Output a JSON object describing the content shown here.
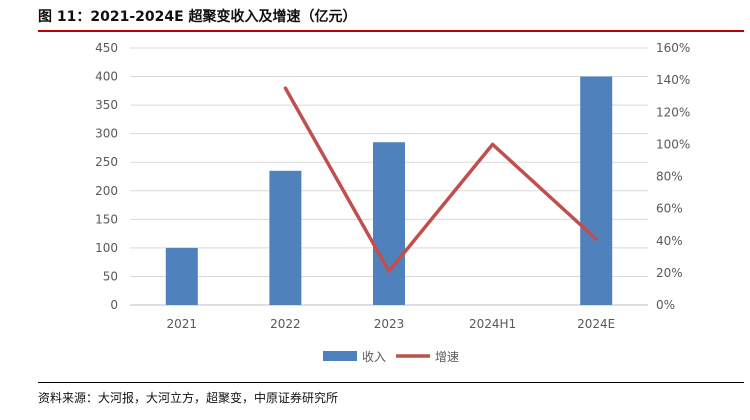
{
  "header": {
    "title": "图 11：2021-2024E 超聚变收入及增速（亿元）"
  },
  "footer": {
    "source": "资料来源：大河报，大河立方，超聚变，中原证券研究所"
  },
  "colors": {
    "bar": "#4f81bd",
    "line": "#c0504d",
    "grid": "#d9d9d9",
    "axis_text": "#595959",
    "title_rule": "#c00000"
  },
  "chart_data": {
    "type": "bar",
    "categories": [
      "2021",
      "2022",
      "2023",
      "2024H1",
      "2024E"
    ],
    "series": [
      {
        "name": "收入",
        "type": "bar",
        "axis": "left",
        "values": [
          100,
          235,
          285,
          null,
          400
        ]
      },
      {
        "name": "增速",
        "type": "line",
        "axis": "right",
        "values": [
          null,
          1.35,
          0.21,
          1.0,
          0.41
        ]
      }
    ],
    "y_left": {
      "min": 0,
      "max": 450,
      "step": 50,
      "ticks": [
        "0",
        "50",
        "100",
        "150",
        "200",
        "250",
        "300",
        "350",
        "400",
        "450"
      ]
    },
    "y_right": {
      "min": 0,
      "max": 1.6,
      "step": 0.2,
      "ticks": [
        "0%",
        "20%",
        "40%",
        "60%",
        "80%",
        "100%",
        "120%",
        "140%",
        "160%"
      ]
    },
    "grid": true,
    "legend_position": "bottom"
  }
}
